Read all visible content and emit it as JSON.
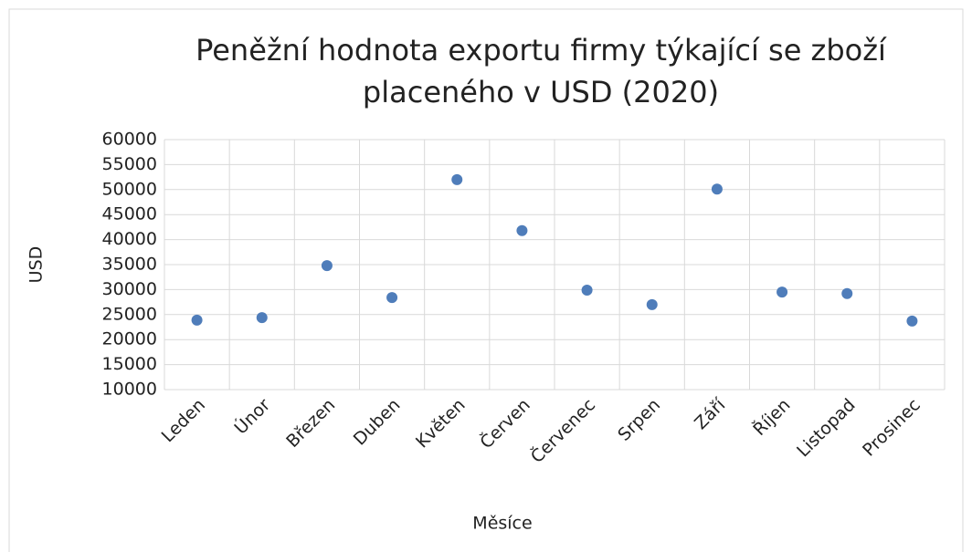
{
  "chart_data": {
    "type": "line",
    "title": "Peněžní hodnota exportu firmy týkající se zboží placeného v USD (2020)",
    "x_label": "Měsíce",
    "y_label": "USD",
    "categories": [
      "Leden",
      "Únor",
      "Březen",
      "Duben",
      "Květen",
      "Červen",
      "Červenec",
      "Srpen",
      "Září",
      "Říjen",
      "Listopad",
      "Prosinec"
    ],
    "series": [
      {
        "name": "USD",
        "color": "#4f7dba",
        "values": [
          23900,
          24400,
          34800,
          28400,
          52000,
          41800,
          29900,
          27000,
          50100,
          29500,
          29200,
          23700
        ]
      }
    ],
    "ylim": [
      10000,
      60000
    ],
    "yticks": [
      10000,
      15000,
      20000,
      25000,
      30000,
      35000,
      40000,
      45000,
      50000,
      55000,
      60000
    ],
    "grid": true
  }
}
